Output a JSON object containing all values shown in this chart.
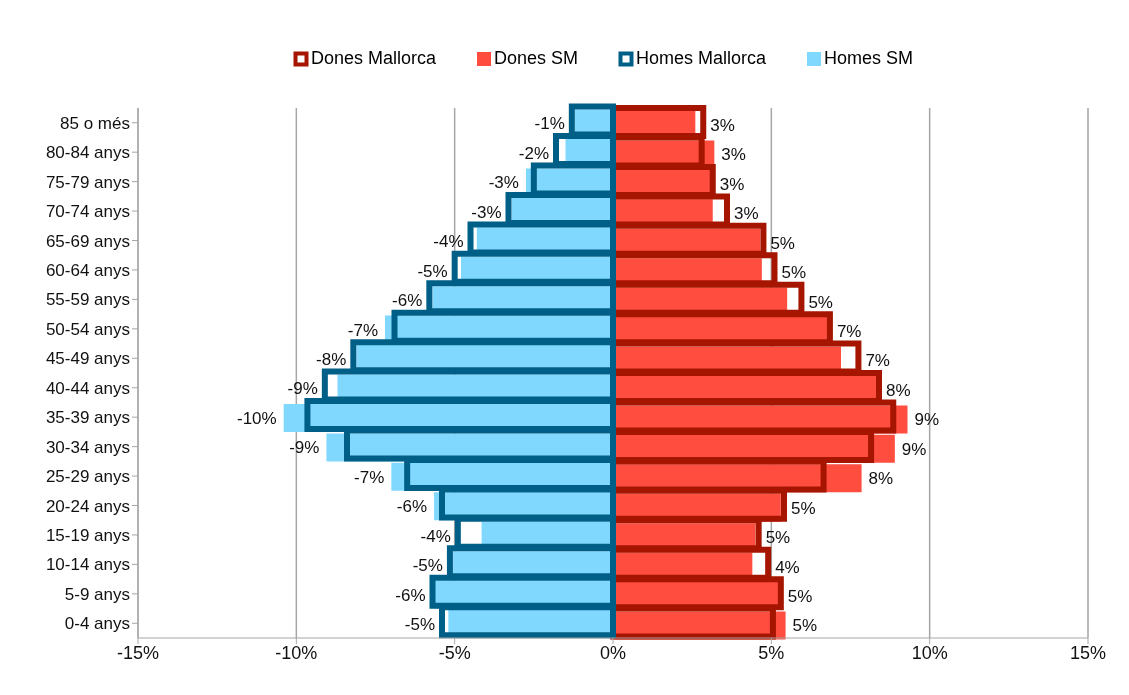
{
  "chart_data": {
    "type": "bar",
    "orientation": "horizontal",
    "categories": [
      "85 o més",
      "80-84 anys",
      "75-79 anys",
      "70-74 anys",
      "65-69 anys",
      "60-64 anys",
      "55-59 anys",
      "50-54 anys",
      "45-49 anys",
      "40-44 anys",
      "35-39 anys",
      "30-34 anys",
      "25-29 anys",
      "20-24 anys",
      "15-19 anys",
      "10-14 anys",
      "5-9 anys",
      "0-4 anys"
    ],
    "series": [
      {
        "name": "Dones Mallorca",
        "color": "#a51500",
        "line_style": "solid",
        "values": [
          2.85,
          2.8,
          3.15,
          3.6,
          4.75,
          5.1,
          5.95,
          6.85,
          7.75,
          8.4,
          8.85,
          8.15,
          6.65,
          5.4,
          4.6,
          4.9,
          5.3,
          5.05
        ]
      },
      {
        "name": "Dones SM",
        "color": "#ff4d40",
        "values": [
          2.6,
          3.2,
          3.1,
          3.15,
          4.65,
          4.7,
          5.5,
          6.8,
          7.2,
          8.35,
          9.3,
          8.9,
          7.85,
          5.3,
          4.5,
          4.4,
          5.3,
          5.45
        ],
        "value_labels": [
          "3%",
          "3%",
          "3%",
          "3%",
          "5%",
          "5%",
          "5%",
          "7%",
          "7%",
          "8%",
          "9%",
          "9%",
          "8%",
          "5%",
          "5%",
          "4%",
          "5%",
          "5%"
        ]
      },
      {
        "name": "Homes Mallorca",
        "color": "#005f87",
        "line_style": "solid",
        "values": [
          -1.3,
          -1.8,
          -2.5,
          -3.3,
          -4.5,
          -5.0,
          -5.8,
          -6.9,
          -8.2,
          -9.1,
          -9.65,
          -8.4,
          -6.5,
          -5.4,
          -4.9,
          -5.15,
          -5.7,
          -5.4
        ]
      },
      {
        "name": "Homes SM",
        "color": "#80d8ff",
        "values": [
          -1.2,
          -1.5,
          -2.75,
          -3.2,
          -4.3,
          -4.8,
          -5.7,
          -7.2,
          -8.1,
          -8.7,
          -10.4,
          -9.05,
          -7.0,
          -5.65,
          -4.15,
          -5.05,
          -5.65,
          -5.2
        ],
        "value_labels": [
          "-1%",
          "-2%",
          "-3%",
          "-3%",
          "-4%",
          "-5%",
          "-6%",
          "-7%",
          "-8%",
          "-9%",
          "-10%",
          "-9%",
          "-7%",
          "-6%",
          "-4%",
          "-5%",
          "-6%",
          "-5%"
        ]
      }
    ],
    "xlim": [
      -15,
      15
    ],
    "xticks": [
      {
        "value": -15,
        "label": "-15%"
      },
      {
        "value": -10,
        "label": "-10%"
      },
      {
        "value": -5,
        "label": "-5%"
      },
      {
        "value": 0,
        "label": "0%"
      },
      {
        "value": 5,
        "label": "5%"
      },
      {
        "value": 10,
        "label": "10%"
      },
      {
        "value": 15,
        "label": "15%"
      }
    ],
    "grid": "x",
    "legend": "top"
  }
}
